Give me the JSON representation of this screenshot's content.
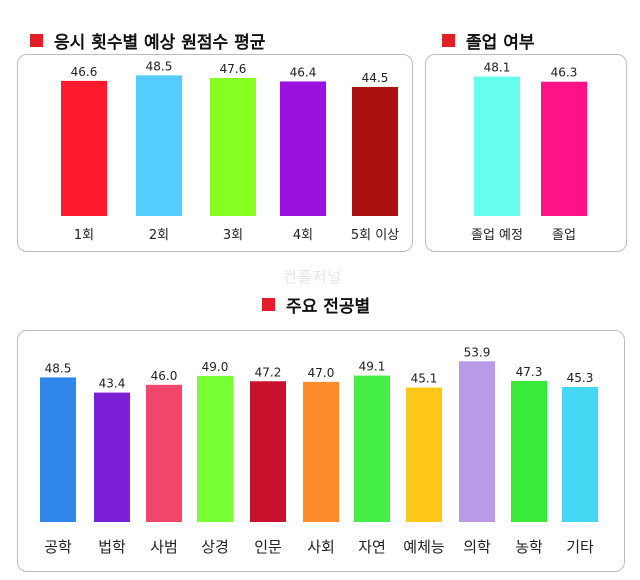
{
  "titles": {
    "attempts": "응시 횟수별 예상 원점수 평균",
    "graduation": "졸업 여부",
    "majors": "주요 전공별"
  },
  "watermark": "컨플저널",
  "colors": {
    "title_marker": "#e41e26"
  },
  "chart_data": [
    {
      "type": "bar",
      "categories": [
        "1회",
        "2회",
        "3회",
        "4회",
        "5회 이상"
      ],
      "values": [
        46.6,
        48.5,
        47.6,
        46.4,
        44.5
      ],
      "colors": [
        "#ff1a2e",
        "#55ccff",
        "#88ff22",
        "#9911dd",
        "#aa1111"
      ],
      "title": "응시 횟수별 예상 원점수 평균",
      "ylim": [
        0,
        50
      ],
      "grid": false
    },
    {
      "type": "bar",
      "categories": [
        "졸업 예정",
        "졸업"
      ],
      "values": [
        48.1,
        46.3
      ],
      "colors": [
        "#66ffee",
        "#ff1188"
      ],
      "title": "졸업 여부",
      "ylim": [
        0,
        50
      ],
      "grid": false
    },
    {
      "type": "bar",
      "categories": [
        "공학",
        "법학",
        "사범",
        "상경",
        "인문",
        "사회",
        "자연",
        "예체능",
        "의학",
        "농학",
        "기타"
      ],
      "values": [
        48.5,
        43.4,
        46.0,
        49.0,
        47.2,
        47.0,
        49.1,
        45.1,
        53.9,
        47.3,
        45.3
      ],
      "colors": [
        "#2f86e8",
        "#7a1fd6",
        "#f2476b",
        "#77ff33",
        "#c8112c",
        "#ff8c2a",
        "#44ee44",
        "#ffc81a",
        "#b99ae6",
        "#39ea39",
        "#45d8f4"
      ],
      "title": "주요 전공별",
      "ylim": [
        0,
        55
      ],
      "grid": false
    }
  ]
}
